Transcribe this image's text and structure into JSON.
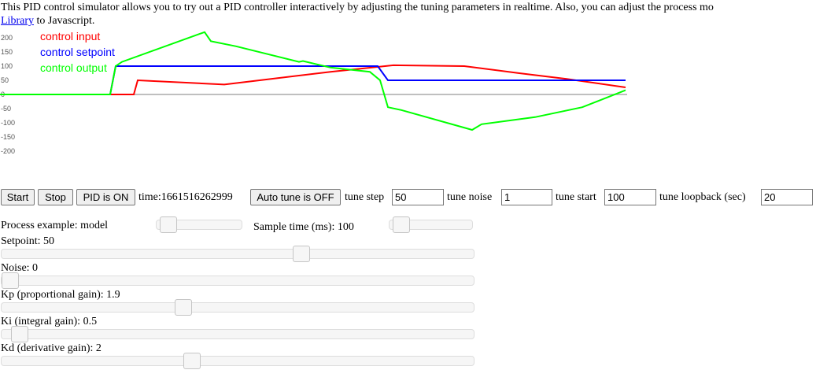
{
  "intro": {
    "text_before": "This PID control simulator allows you to try out a PID controller interactively by adjusting the tuning parameters in realtime. Also, you can adjust the process mo",
    "link": "Library",
    "text_after": " to Javascript."
  },
  "chart_data": {
    "type": "line",
    "y_ticks": [
      "200",
      "150",
      "100",
      "50",
      "0",
      "-50",
      "-100",
      "-150",
      "-200"
    ],
    "ylim": [
      -200,
      200
    ],
    "legend_position": "top-left",
    "series": [
      {
        "name": "control input",
        "color": "#ff0000",
        "points": [
          [
            0,
            0
          ],
          [
            140,
            0
          ],
          [
            170,
            0
          ],
          [
            175,
            50
          ],
          [
            285,
            35
          ],
          [
            330,
            50
          ],
          [
            420,
            80
          ],
          [
            500,
            103
          ],
          [
            590,
            100
          ],
          [
            660,
            75
          ],
          [
            720,
            55
          ],
          [
            795,
            25
          ]
        ]
      },
      {
        "name": "control setpoint",
        "color": "#0000ff",
        "points": [
          [
            0,
            0
          ],
          [
            140,
            0
          ],
          [
            147,
            100
          ],
          [
            480,
            100
          ],
          [
            493,
            50
          ],
          [
            795,
            50
          ]
        ]
      },
      {
        "name": "control output",
        "color": "#00ff00",
        "points": [
          [
            0,
            0
          ],
          [
            140,
            0
          ],
          [
            147,
            100
          ],
          [
            155,
            115
          ],
          [
            260,
            220
          ],
          [
            268,
            188
          ],
          [
            300,
            170
          ],
          [
            380,
            115
          ],
          [
            385,
            118
          ],
          [
            420,
            95
          ],
          [
            470,
            80
          ],
          [
            483,
            50
          ],
          [
            493,
            -45
          ],
          [
            510,
            -55
          ],
          [
            600,
            -125
          ],
          [
            612,
            -105
          ],
          [
            680,
            -80
          ],
          [
            740,
            -45
          ],
          [
            795,
            15
          ]
        ]
      }
    ]
  },
  "controls": {
    "start": "Start",
    "stop": "Stop",
    "pid_toggle": "PID is ON",
    "time_label": "time:1661516262999",
    "autotune_toggle": "Auto tune is OFF",
    "tune_step_label": "tune step",
    "tune_step_value": "50",
    "tune_noise_label": "tune noise",
    "tune_noise_value": "1",
    "tune_start_label": "tune start",
    "tune_start_value": "100",
    "tune_loopback_label": "tune loopback (sec)",
    "tune_loopback_value": "20"
  },
  "sliders": {
    "process_example": {
      "label": "Process example: model",
      "level": 0.05
    },
    "sample_time": {
      "label": "Sample time (ms): 100",
      "level": 0.05
    },
    "setpoint": {
      "label": "Setpoint: 50",
      "level": 0.64
    },
    "noise": {
      "label": "Noise: 0",
      "level": 0.0
    },
    "kp": {
      "label": "Kp (proportional gain): 1.9",
      "level": 0.38
    },
    "ki": {
      "label": "Ki (integral gain): 0.5",
      "level": 0.02
    },
    "kd": {
      "label": "Kd (derivative gain): 2",
      "level": 0.4
    }
  }
}
